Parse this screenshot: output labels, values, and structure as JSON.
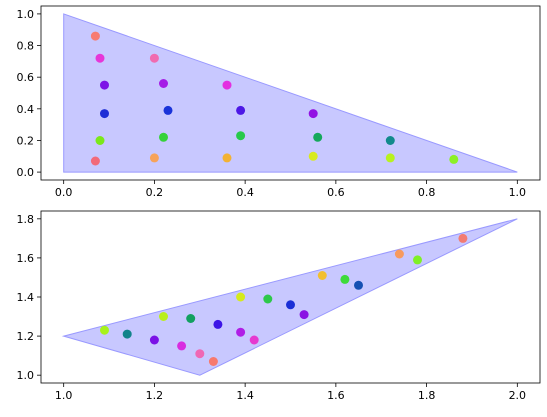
{
  "chart_data": [
    {
      "type": "scatter",
      "xlim": [
        -0.05,
        1.05
      ],
      "ylim": [
        -0.05,
        1.05
      ],
      "xticks": [
        "0.0",
        "0.2",
        "0.4",
        "0.6",
        "0.8",
        "1.0"
      ],
      "yticks": [
        "0.0",
        "0.2",
        "0.4",
        "0.6",
        "0.8",
        "1.0"
      ],
      "polygon": {
        "points": [
          [
            0.0,
            0.0
          ],
          [
            1.0,
            0.0
          ],
          [
            0.0,
            1.0
          ]
        ],
        "fill": "#c8c8ff",
        "stroke": "#9999ff"
      },
      "points": [
        {
          "x": 0.07,
          "y": 0.86,
          "color": "#f77b72"
        },
        {
          "x": 0.08,
          "y": 0.72,
          "color": "#e637d8"
        },
        {
          "x": 0.09,
          "y": 0.55,
          "color": "#7d13e6"
        },
        {
          "x": 0.09,
          "y": 0.37,
          "color": "#1f2fd6"
        },
        {
          "x": 0.08,
          "y": 0.2,
          "color": "#7be81a"
        },
        {
          "x": 0.07,
          "y": 0.07,
          "color": "#f26a7a"
        },
        {
          "x": 0.2,
          "y": 0.72,
          "color": "#f06bb0"
        },
        {
          "x": 0.22,
          "y": 0.56,
          "color": "#a51de6"
        },
        {
          "x": 0.23,
          "y": 0.39,
          "color": "#1a33d9"
        },
        {
          "x": 0.22,
          "y": 0.22,
          "color": "#35d23a"
        },
        {
          "x": 0.2,
          "y": 0.09,
          "color": "#f7a35a"
        },
        {
          "x": 0.36,
          "y": 0.55,
          "color": "#e32fe0"
        },
        {
          "x": 0.39,
          "y": 0.39,
          "color": "#4d18e6"
        },
        {
          "x": 0.39,
          "y": 0.23,
          "color": "#27c94a"
        },
        {
          "x": 0.36,
          "y": 0.09,
          "color": "#f2b234"
        },
        {
          "x": 0.55,
          "y": 0.37,
          "color": "#9212e3"
        },
        {
          "x": 0.56,
          "y": 0.22,
          "color": "#15a85c"
        },
        {
          "x": 0.55,
          "y": 0.1,
          "color": "#d8ea1f"
        },
        {
          "x": 0.72,
          "y": 0.2,
          "color": "#128a8c"
        },
        {
          "x": 0.72,
          "y": 0.09,
          "color": "#b8f21f"
        },
        {
          "x": 0.86,
          "y": 0.08,
          "color": "#8cf026"
        }
      ]
    },
    {
      "type": "scatter",
      "xlim": [
        0.95,
        2.05
      ],
      "ylim": [
        0.96,
        1.84
      ],
      "xticks": [
        "1.0",
        "1.2",
        "1.4",
        "1.6",
        "1.8",
        "2.0"
      ],
      "yticks": [
        "1.0",
        "1.2",
        "1.4",
        "1.6",
        "1.8"
      ],
      "polygon": {
        "points": [
          [
            1.0,
            1.2
          ],
          [
            2.0,
            1.8
          ],
          [
            1.3,
            1.0
          ]
        ],
        "fill": "#c8c8ff",
        "stroke": "#9999ff"
      },
      "points": [
        {
          "x": 1.09,
          "y": 1.23,
          "color": "#a7f21c"
        },
        {
          "x": 1.14,
          "y": 1.21,
          "color": "#11838a"
        },
        {
          "x": 1.22,
          "y": 1.3,
          "color": "#b9ef1d"
        },
        {
          "x": 1.2,
          "y": 1.18,
          "color": "#7b12e6"
        },
        {
          "x": 1.28,
          "y": 1.29,
          "color": "#12a060"
        },
        {
          "x": 1.26,
          "y": 1.15,
          "color": "#d82ce0"
        },
        {
          "x": 1.34,
          "y": 1.26,
          "color": "#3d15e6"
        },
        {
          "x": 1.3,
          "y": 1.11,
          "color": "#ef68b4"
        },
        {
          "x": 1.39,
          "y": 1.4,
          "color": "#d5ea1c"
        },
        {
          "x": 1.39,
          "y": 1.22,
          "color": "#b01ee6"
        },
        {
          "x": 1.33,
          "y": 1.07,
          "color": "#f7796e"
        },
        {
          "x": 1.45,
          "y": 1.39,
          "color": "#2ec84a"
        },
        {
          "x": 1.42,
          "y": 1.18,
          "color": "#e63ad0"
        },
        {
          "x": 1.5,
          "y": 1.36,
          "color": "#1a2fd6"
        },
        {
          "x": 1.53,
          "y": 1.31,
          "color": "#8a12e3"
        },
        {
          "x": 1.57,
          "y": 1.51,
          "color": "#f2bf30"
        },
        {
          "x": 1.62,
          "y": 1.49,
          "color": "#3ddb3a"
        },
        {
          "x": 1.65,
          "y": 1.46,
          "color": "#1550b3"
        },
        {
          "x": 1.74,
          "y": 1.62,
          "color": "#f79a5e"
        },
        {
          "x": 1.78,
          "y": 1.59,
          "color": "#7ff026"
        },
        {
          "x": 1.88,
          "y": 1.7,
          "color": "#f27c72"
        }
      ]
    }
  ]
}
